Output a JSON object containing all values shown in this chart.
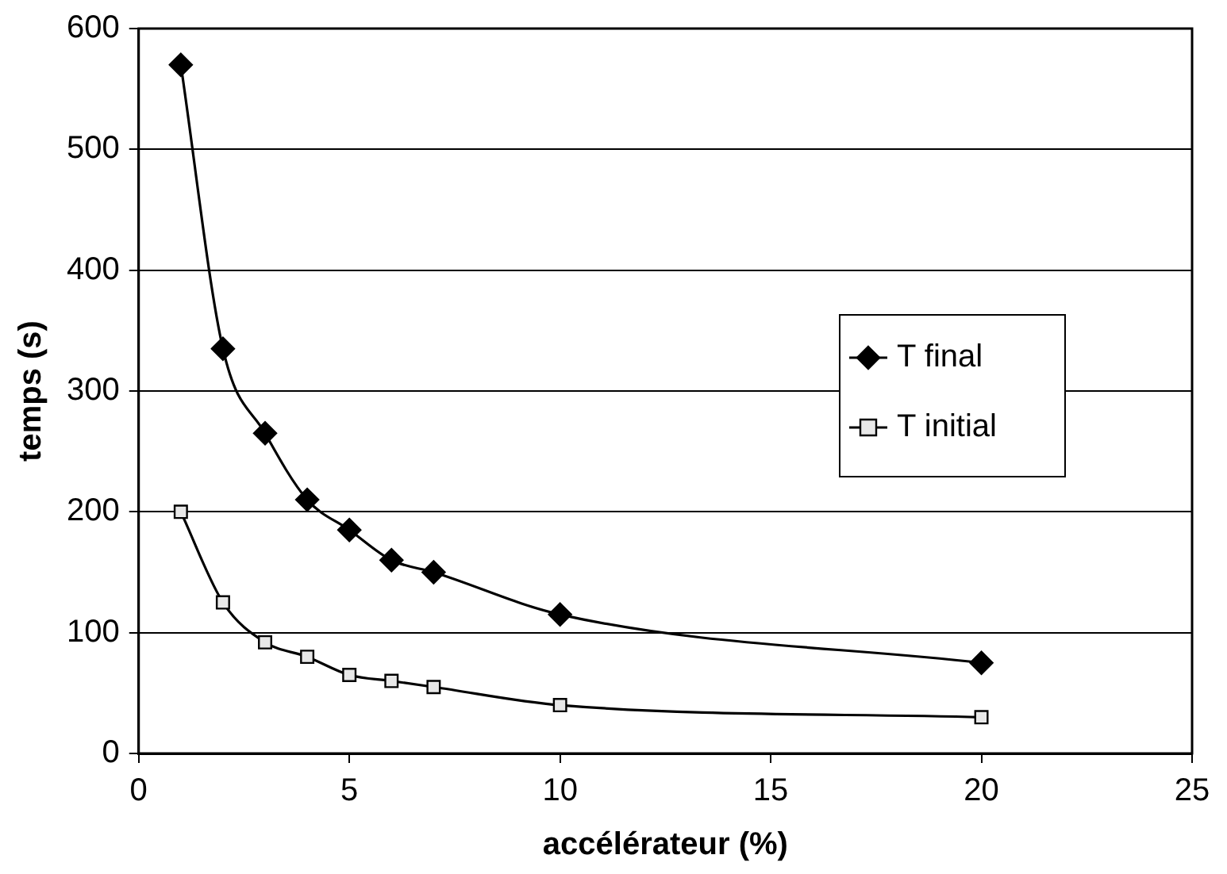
{
  "chart_data": {
    "type": "line",
    "xlabel": "accélérateur (%)",
    "ylabel": "temps (s)",
    "xlim": [
      0,
      25
    ],
    "xticks": [
      0,
      5,
      10,
      15,
      20,
      25
    ],
    "ylim": [
      0,
      600
    ],
    "yticks": [
      0,
      100,
      200,
      300,
      400,
      500,
      600
    ],
    "grid": "y",
    "legend": "right",
    "line_style": "solid",
    "x": [
      1,
      2,
      3,
      4,
      5,
      6,
      7,
      10,
      20
    ],
    "series": [
      {
        "name": "T final",
        "color": "#000000",
        "marker": "diamond",
        "values": [
          570,
          335,
          265,
          210,
          185,
          160,
          150,
          115,
          75
        ]
      },
      {
        "name": "T initial",
        "color": "#000000",
        "marker": "square",
        "values": [
          200,
          125,
          92,
          80,
          65,
          60,
          55,
          40,
          30
        ]
      }
    ]
  }
}
